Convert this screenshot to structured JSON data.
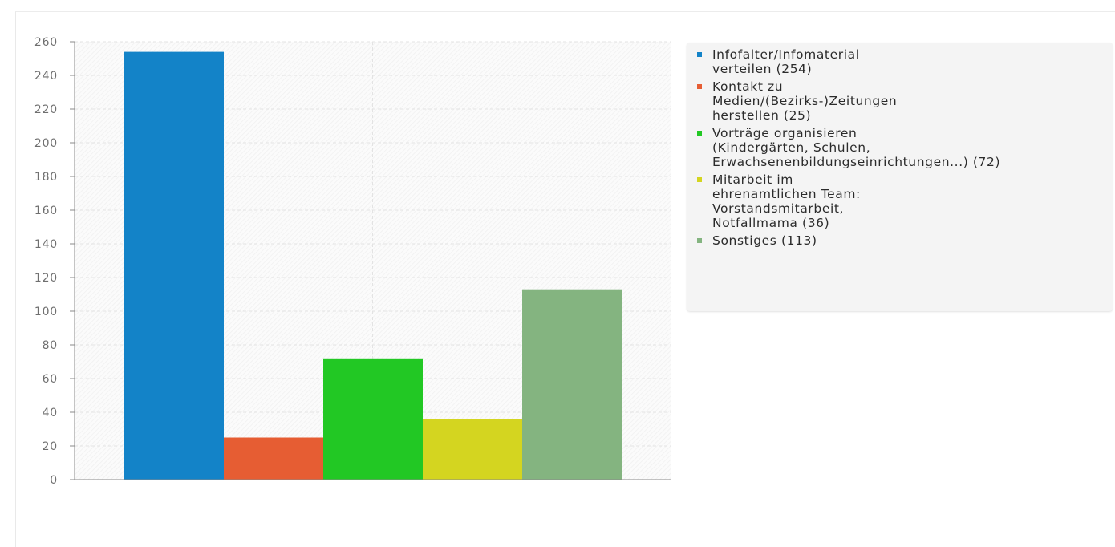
{
  "chart_data": {
    "type": "bar",
    "title": "",
    "xlabel": "",
    "ylabel": "",
    "ylim": [
      0,
      260
    ],
    "ytick_step": 20,
    "yticks": [
      "0",
      "20",
      "40",
      "60",
      "80",
      "100",
      "120",
      "140",
      "160",
      "180",
      "200",
      "220",
      "240",
      "260"
    ],
    "grid": true,
    "legend_position": "right",
    "series": [
      {
        "name": "Infofalter/Infomaterial verteilen",
        "legend_label": "Infofalter/Infomaterial\nverteilen (254)",
        "value": 254,
        "color": "#1383c8"
      },
      {
        "name": "Kontakt zu Medien/(Bezirks-)Zeitungen herstellen",
        "legend_label": "Kontakt zu\nMedien/(Bezirks-)Zeitungen\nherstellen (25)",
        "value": 25,
        "color": "#e65d33"
      },
      {
        "name": "Vorträge organisieren (Kindergärten, Schulen, Erwachsenenbildungseinrichtungen...)",
        "legend_label": "Vorträge organisieren\n(Kindergärten, Schulen,\nErwachsenenbildungseinrichtungen...) (72)",
        "value": 72,
        "color": "#22c824"
      },
      {
        "name": "Mitarbeit im ehrenamtlichen Team: Vorstandsmitarbeit, Notfallmama",
        "legend_label": "Mitarbeit im\nehrenamtlichen Team:\nVorstandsmitarbeit,\nNotfallmama (36)",
        "value": 36,
        "color": "#d4d520"
      },
      {
        "name": "Sonstiges",
        "legend_label": "Sonstiges (113)",
        "value": 113,
        "color": "#84b480"
      }
    ]
  }
}
